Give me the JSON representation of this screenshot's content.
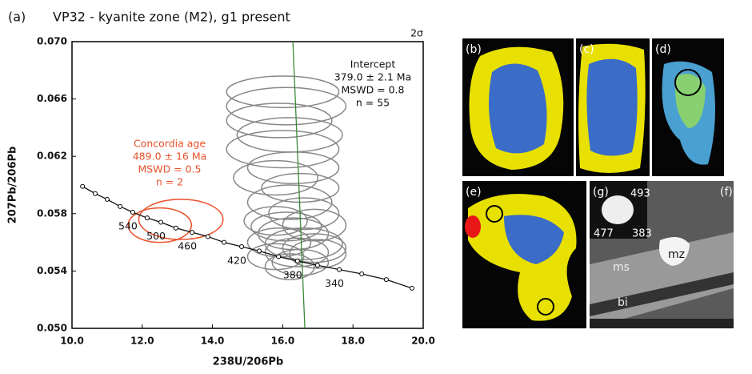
{
  "chart_data": {
    "type": "concordia",
    "panel_label": "(a)",
    "title": "VP32 - kyanite zone (M2), g1 present",
    "x_label": "238U/206Pb",
    "y_label": "207Pb/206Pb",
    "sigma_label": "2σ",
    "xlim": [
      10,
      20
    ],
    "ylim": [
      0.05,
      0.07
    ],
    "xticks": [
      {
        "value": 10,
        "label": "10.0"
      },
      {
        "value": 12,
        "label": "12.0"
      },
      {
        "value": 14,
        "label": "14.0"
      },
      {
        "value": 16,
        "label": "16.0"
      },
      {
        "value": 18,
        "label": "18.0"
      },
      {
        "value": 20,
        "label": "20.0"
      }
    ],
    "yticks": [
      {
        "value": 0.05,
        "label": "0.050"
      },
      0.054,
      0.058,
      0.062,
      0.066,
      {
        "value": 0.07,
        "label": "0.070"
      }
    ],
    "intercept_text": [
      "Intercept",
      "379.0 ± 2.1 Ma",
      "MSWD = 0.8",
      "n = 55"
    ],
    "concordia_age_text": [
      "Concordia age",
      "489.0 ± 16 Ma",
      "MSWD = 0.5",
      "n = 2"
    ],
    "concordia_age_color": "#e8502a",
    "concordia": {
      "color": "#111",
      "x": [
        10.3,
        10.66,
        11.0,
        11.37,
        11.73,
        12.14,
        12.53,
        12.96,
        13.42,
        13.87,
        14.33,
        14.83,
        15.33,
        15.88,
        16.42,
        16.99,
        17.61,
        18.25,
        18.95,
        19.68
      ],
      "y": [
        0.0599,
        0.0594,
        0.059,
        0.0585,
        0.0581,
        0.0577,
        0.0574,
        0.057,
        0.0567,
        0.0564,
        0.056,
        0.0557,
        0.0554,
        0.055,
        0.0547,
        0.0544,
        0.0541,
        0.0538,
        0.0534,
        0.0528
      ],
      "ages": [
        null,
        null,
        null,
        null,
        540,
        null,
        500,
        null,
        460,
        null,
        null,
        420,
        null,
        null,
        380,
        null,
        340,
        null,
        null,
        null
      ]
    },
    "discordia": {
      "color": "#3a8a3a",
      "x": [
        16.29,
        16.63
      ],
      "y": [
        0.07,
        0.05
      ]
    },
    "ellipses": [
      {
        "x": 12.5,
        "y": 0.0572,
        "rx": 0.9,
        "ry": 0.0012,
        "color": "#e8502a"
      },
      {
        "x": 13.1,
        "y": 0.0576,
        "rx": 1.2,
        "ry": 0.0014,
        "color": "#e8502a"
      },
      {
        "x": 16.0,
        "y": 0.0665,
        "rx": 1.6,
        "ry": 0.0011,
        "color": "#888"
      },
      {
        "x": 16.1,
        "y": 0.0655,
        "rx": 1.7,
        "ry": 0.0013,
        "color": "#888"
      },
      {
        "x": 15.9,
        "y": 0.0645,
        "rx": 1.5,
        "ry": 0.0012,
        "color": "#888"
      },
      {
        "x": 16.2,
        "y": 0.0635,
        "rx": 1.5,
        "ry": 0.0012,
        "color": "#888"
      },
      {
        "x": 16.0,
        "y": 0.0625,
        "rx": 1.6,
        "ry": 0.0013,
        "color": "#888"
      },
      {
        "x": 16.3,
        "y": 0.0612,
        "rx": 1.3,
        "ry": 0.0011,
        "color": "#888"
      },
      {
        "x": 15.8,
        "y": 0.0605,
        "rx": 1.2,
        "ry": 0.0012,
        "color": "#888"
      },
      {
        "x": 16.5,
        "y": 0.0598,
        "rx": 1.1,
        "ry": 0.001,
        "color": "#888"
      },
      {
        "x": 16.2,
        "y": 0.0588,
        "rx": 1.2,
        "ry": 0.0012,
        "color": "#888"
      },
      {
        "x": 16.6,
        "y": 0.058,
        "rx": 1.0,
        "ry": 0.0011,
        "color": "#888"
      },
      {
        "x": 15.8,
        "y": 0.0575,
        "rx": 0.9,
        "ry": 0.001,
        "color": "#888"
      },
      {
        "x": 16.9,
        "y": 0.0572,
        "rx": 0.9,
        "ry": 0.0011,
        "color": "#888"
      },
      {
        "x": 16.1,
        "y": 0.0571,
        "rx": 1.0,
        "ry": 0.001,
        "color": "#888"
      },
      {
        "x": 16.3,
        "y": 0.0566,
        "rx": 1.0,
        "ry": 0.0011,
        "color": "#888"
      },
      {
        "x": 15.9,
        "y": 0.056,
        "rx": 0.9,
        "ry": 0.001,
        "color": "#888"
      },
      {
        "x": 16.6,
        "y": 0.0559,
        "rx": 1.1,
        "ry": 0.0011,
        "color": "#888"
      },
      {
        "x": 16.9,
        "y": 0.0556,
        "rx": 0.9,
        "ry": 0.001,
        "color": "#888"
      },
      {
        "x": 16.4,
        "y": 0.0553,
        "rx": 0.9,
        "ry": 0.001,
        "color": "#888"
      },
      {
        "x": 17.0,
        "y": 0.0552,
        "rx": 0.8,
        "ry": 0.001,
        "color": "#888"
      },
      {
        "x": 15.8,
        "y": 0.055,
        "rx": 0.8,
        "ry": 0.0009,
        "color": "#888"
      },
      {
        "x": 16.5,
        "y": 0.0546,
        "rx": 0.8,
        "ry": 0.0009,
        "color": "#888"
      },
      {
        "x": 16.2,
        "y": 0.0543,
        "rx": 0.7,
        "ry": 0.0009,
        "color": "#888"
      }
    ]
  },
  "images": {
    "labels": [
      "(b)",
      "(c)",
      "(d)",
      "(e)",
      "(g)",
      "(f)"
    ],
    "spot_ages": [
      "493",
      "477",
      "383"
    ],
    "minerals": [
      "mz",
      "ms",
      "bi"
    ]
  }
}
